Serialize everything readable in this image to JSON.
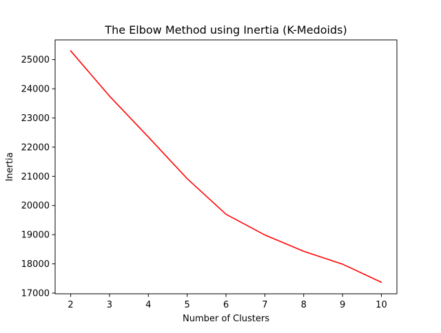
{
  "chart_data": {
    "type": "line",
    "title": "The Elbow Method using Inertia (K-Medoids)",
    "xlabel": "Number of Clusters",
    "ylabel": "Inertia",
    "x": [
      2,
      3,
      4,
      5,
      6,
      7,
      8,
      9,
      10
    ],
    "series": [
      {
        "values": [
          25300,
          23750,
          22350,
          20920,
          19700,
          18990,
          18430,
          17990,
          17370
        ],
        "color": "#ff0000"
      }
    ],
    "xlim": [
      1.6,
      10.4
    ],
    "ylim": [
      16975,
      25675
    ],
    "xticks": [
      2,
      3,
      4,
      5,
      6,
      7,
      8,
      9,
      10
    ],
    "yticks": [
      17000,
      18000,
      19000,
      20000,
      21000,
      22000,
      23000,
      24000,
      25000
    ],
    "grid": false,
    "legend": "none"
  }
}
